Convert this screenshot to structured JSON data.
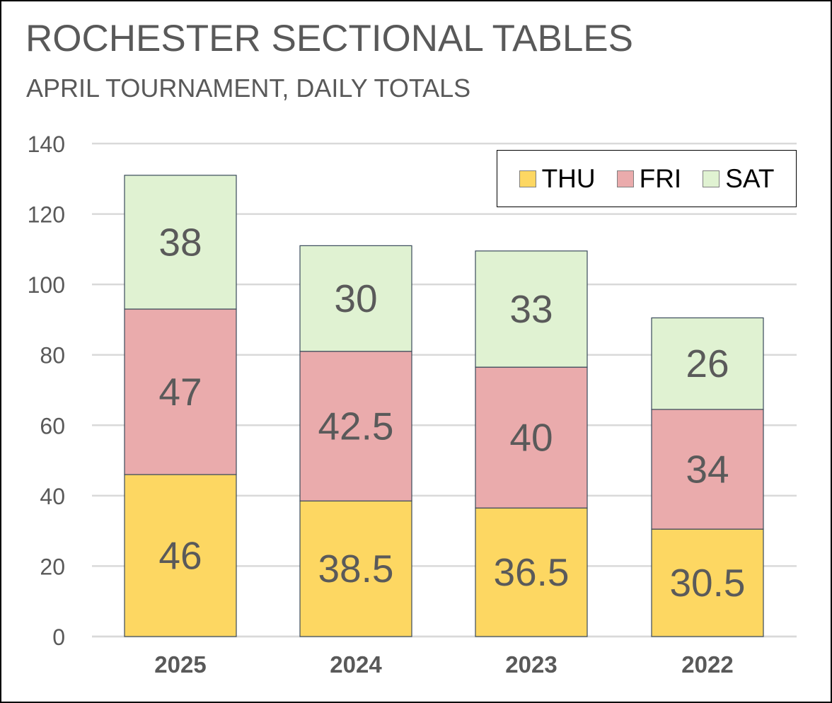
{
  "colors": {
    "thu": "#FDD762",
    "fri": "#EAABAC",
    "sat": "#E0F2D2",
    "bar_outline": "#3a4a5a",
    "grid": "#d9d9d9",
    "tick_text": "#595959",
    "data_label_text": "#5a5a5a",
    "category_text": "#595959"
  },
  "chart_data": {
    "type": "bar",
    "stacked": true,
    "title": "ROCHESTER SECTIONAL TABLES",
    "subtitle": "APRIL TOURNAMENT, DAILY TOTALS",
    "categories": [
      "2025",
      "2024",
      "2023",
      "2022"
    ],
    "series": [
      {
        "name": "THU",
        "color_key": "thu",
        "values": [
          46,
          38.5,
          36.5,
          30.5
        ]
      },
      {
        "name": "FRI",
        "color_key": "fri",
        "values": [
          47,
          42.5,
          40,
          34
        ]
      },
      {
        "name": "SAT",
        "color_key": "sat",
        "values": [
          38,
          30,
          33,
          26
        ]
      }
    ],
    "ylim": [
      0,
      140
    ],
    "yticks": [
      0,
      20,
      40,
      60,
      80,
      100,
      120,
      140
    ],
    "xlabel": "",
    "ylabel": "",
    "grid": true,
    "legend_position": "top-right",
    "data_labels": true
  }
}
